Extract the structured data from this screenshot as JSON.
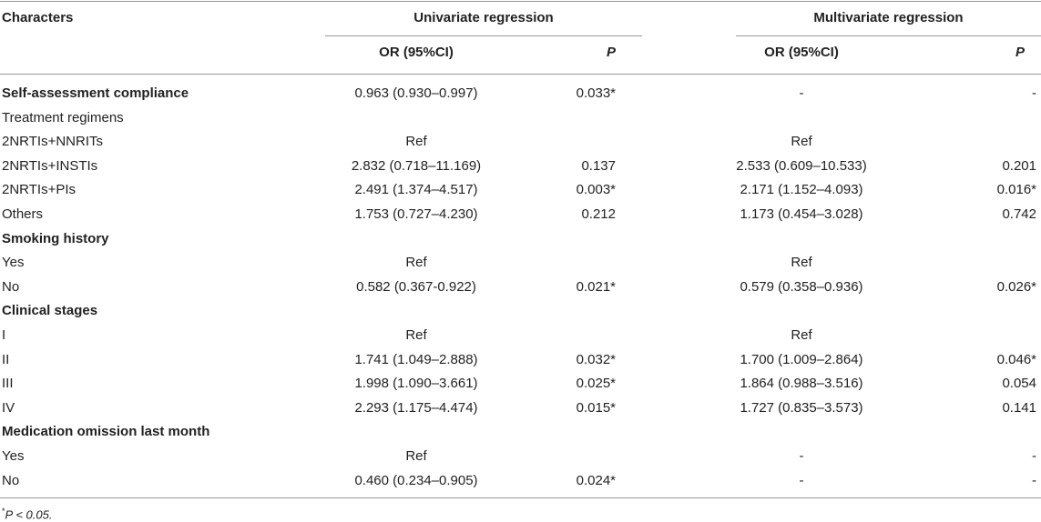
{
  "header": {
    "characters": "Characters",
    "univariate": "Univariate regression",
    "multivariate": "Multivariate regression",
    "or_label": "OR (95%CI)",
    "p_label": "P"
  },
  "rows": [
    {
      "label": "Self-assessment compliance",
      "bold": true,
      "uni_or": "0.963 (0.930–0.997)",
      "uni_p": "0.033*",
      "multi_or": "-",
      "multi_p": "-"
    },
    {
      "label": "Treatment regimens",
      "bold": false,
      "uni_or": "",
      "uni_p": "",
      "multi_or": "",
      "multi_p": ""
    },
    {
      "label": "2NRTIs+NNRITs",
      "bold": false,
      "uni_or": "Ref",
      "uni_p": "",
      "multi_or": "Ref",
      "multi_p": ""
    },
    {
      "label": "2NRTIs+INSTIs",
      "bold": false,
      "uni_or": "2.832 (0.718–11.169)",
      "uni_p": "0.137",
      "multi_or": "2.533 (0.609–10.533)",
      "multi_p": "0.201"
    },
    {
      "label": "2NRTIs+PIs",
      "bold": false,
      "uni_or": "2.491 (1.374–4.517)",
      "uni_p": "0.003*",
      "multi_or": "2.171 (1.152–4.093)",
      "multi_p": "0.016*"
    },
    {
      "label": "Others",
      "bold": false,
      "uni_or": "1.753 (0.727–4.230)",
      "uni_p": "0.212",
      "multi_or": "1.173 (0.454–3.028)",
      "multi_p": "0.742"
    },
    {
      "label": "Smoking history",
      "bold": true,
      "uni_or": "",
      "uni_p": "",
      "multi_or": "",
      "multi_p": ""
    },
    {
      "label": "Yes",
      "bold": false,
      "uni_or": "Ref",
      "uni_p": "",
      "multi_or": "Ref",
      "multi_p": ""
    },
    {
      "label": "No",
      "bold": false,
      "uni_or": "0.582 (0.367-0.922)",
      "uni_p": "0.021*",
      "multi_or": "0.579 (0.358–0.936)",
      "multi_p": "0.026*"
    },
    {
      "label": "Clinical stages",
      "bold": true,
      "uni_or": "",
      "uni_p": "",
      "multi_or": "",
      "multi_p": ""
    },
    {
      "label": "I",
      "bold": false,
      "uni_or": "Ref",
      "uni_p": "",
      "multi_or": "Ref",
      "multi_p": ""
    },
    {
      "label": "II",
      "bold": false,
      "uni_or": "1.741 (1.049–2.888)",
      "uni_p": "0.032*",
      "multi_or": "1.700 (1.009–2.864)",
      "multi_p": "0.046*"
    },
    {
      "label": "III",
      "bold": false,
      "uni_or": "1.998 (1.090–3.661)",
      "uni_p": "0.025*",
      "multi_or": "1.864 (0.988–3.516)",
      "multi_p": "0.054"
    },
    {
      "label": "IV",
      "bold": false,
      "uni_or": "2.293 (1.175–4.474)",
      "uni_p": "0.015*",
      "multi_or": "1.727 (0.835–3.573)",
      "multi_p": "0.141"
    },
    {
      "label": "Medication omission last month",
      "bold": true,
      "uni_or": "",
      "uni_p": "",
      "multi_or": "",
      "multi_p": ""
    },
    {
      "label": "Yes",
      "bold": false,
      "uni_or": "Ref",
      "uni_p": "",
      "multi_or": "-",
      "multi_p": "-"
    },
    {
      "label": "No",
      "bold": false,
      "uni_or": "0.460 (0.234–0.905)",
      "uni_p": "0.024*",
      "multi_or": "-",
      "multi_p": "-"
    }
  ],
  "footnote": {
    "mark": "*",
    "text": "P < 0.05."
  }
}
